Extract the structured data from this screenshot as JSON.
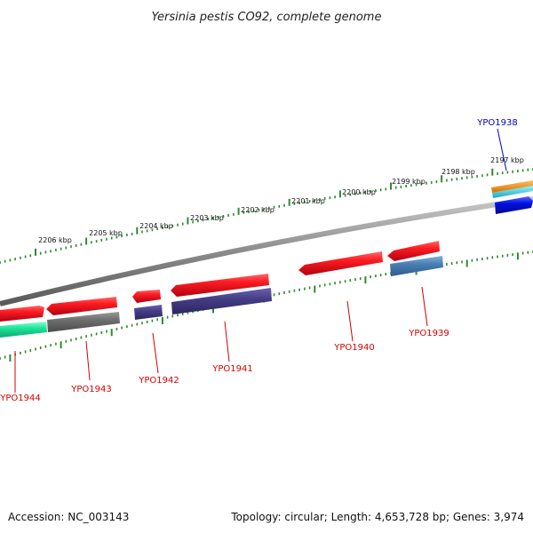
{
  "title": "Yersinia pestis CO92, complete genome",
  "accession": "Accession: NC_003143",
  "topology": "Topology: circular; Length: 4,653,728 bp; Genes: 3,974",
  "colors": {
    "backbone": "#8c8c8c",
    "tick": "#2e8b2e",
    "red_gene": "#e8141c",
    "label_red": "#d40000",
    "label_blue": "#0000cc",
    "navy": "#463e86",
    "gray_bar": "#6e6e6e",
    "steel": "#4a7fb5",
    "mint": "#1ee59a",
    "orange": "#f08c00",
    "cyan": "#24c8d8",
    "blue": "#0010e0"
  },
  "kbp_labels": [
    "2206 kbp",
    "2205 kbp",
    "2204 kbp",
    "2203 kbp",
    "2202 kbp",
    "2201 kbp",
    "2200 kbp",
    "2199 kbp",
    "2198 kbp",
    "2197 kbp"
  ],
  "genes": [
    {
      "name": "YPO1944",
      "color": "label_red"
    },
    {
      "name": "YPO1943",
      "color": "label_red"
    },
    {
      "name": "YPO1942",
      "color": "label_red"
    },
    {
      "name": "YPO1941",
      "color": "label_red"
    },
    {
      "name": "YPO1940",
      "color": "label_red"
    },
    {
      "name": "YPO1939",
      "color": "label_red"
    },
    {
      "name": "YPO1938",
      "color": "label_blue"
    }
  ]
}
